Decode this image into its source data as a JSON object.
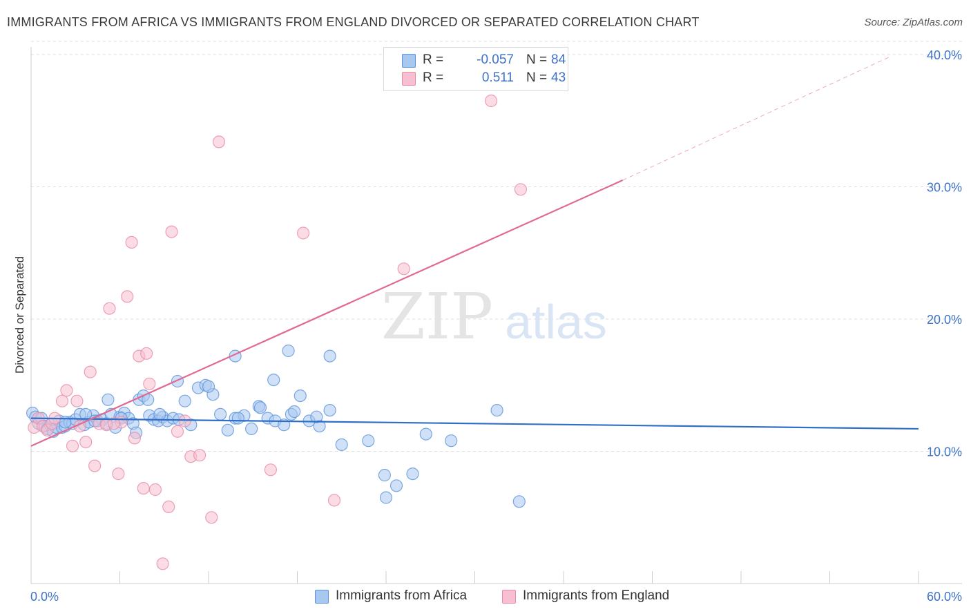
{
  "title": "IMMIGRANTS FROM AFRICA VS IMMIGRANTS FROM ENGLAND DIVORCED OR SEPARATED CORRELATION CHART",
  "source": "Source: ZipAtlas.com",
  "watermark": {
    "zip": "ZIP",
    "atlas": "atlas"
  },
  "colors": {
    "africa_fill": "#a9c8f0",
    "africa_stroke": "#5b93dc",
    "africa_line": "#2f6fc8",
    "england_fill": "#f7bfd0",
    "england_stroke": "#e88aa8",
    "england_line": "#e06a94",
    "tick_label": "#3d72c8",
    "grid": "#dddddd"
  },
  "legend": {
    "rows": [
      {
        "r_label": "R =",
        "r_value": "-0.057",
        "n_label": "N =",
        "n_value": "84"
      },
      {
        "r_label": "R =",
        "r_value": "0.511",
        "n_label": "N =",
        "n_value": "43"
      }
    ]
  },
  "chart_data": {
    "type": "scatter",
    "xlabel": "",
    "ylabel": "Divorced or Separated",
    "xlim": [
      0,
      60
    ],
    "ylim": [
      0,
      41
    ],
    "x_tick_labels": [
      "0.0%",
      "60.0%"
    ],
    "y_ticks": [
      10,
      20,
      30,
      40
    ],
    "y_tick_labels": [
      "10.0%",
      "20.0%",
      "30.0%",
      "40.0%"
    ],
    "grid": true,
    "legend_position": "bottom",
    "series": [
      {
        "name": "Immigrants from Africa",
        "trend": {
          "x": [
            0,
            60
          ],
          "y": [
            12.5,
            11.7
          ],
          "dashed_extension": false
        },
        "points": [
          [
            0.1,
            12.9
          ],
          [
            0.3,
            12.6
          ],
          [
            0.5,
            12.1
          ],
          [
            0.7,
            12.5
          ],
          [
            0.9,
            11.9
          ],
          [
            1.1,
            11.7
          ],
          [
            1.3,
            12.0
          ],
          [
            1.5,
            11.5
          ],
          [
            1.7,
            11.8
          ],
          [
            1.9,
            12.3
          ],
          [
            2.1,
            11.8
          ],
          [
            2.3,
            11.9
          ],
          [
            2.6,
            12.2
          ],
          [
            2.8,
            12.1
          ],
          [
            3.0,
            12.4
          ],
          [
            3.3,
            12.8
          ],
          [
            3.6,
            12.0
          ],
          [
            3.9,
            12.2
          ],
          [
            4.2,
            12.7
          ],
          [
            4.5,
            12.3
          ],
          [
            4.8,
            12.4
          ],
          [
            5.1,
            12.1
          ],
          [
            5.4,
            12.8
          ],
          [
            5.7,
            11.8
          ],
          [
            6.0,
            12.6
          ],
          [
            6.3,
            12.9
          ],
          [
            6.6,
            12.5
          ],
          [
            6.9,
            12.1
          ],
          [
            7.1,
            11.4
          ],
          [
            7.3,
            13.9
          ],
          [
            7.6,
            14.2
          ],
          [
            8.0,
            12.7
          ],
          [
            8.3,
            12.4
          ],
          [
            8.6,
            12.3
          ],
          [
            8.9,
            12.6
          ],
          [
            9.2,
            12.3
          ],
          [
            9.6,
            12.5
          ],
          [
            10.0,
            12.4
          ],
          [
            10.4,
            13.8
          ],
          [
            10.8,
            12.0
          ],
          [
            11.3,
            14.8
          ],
          [
            11.8,
            15.0
          ],
          [
            12.3,
            14.3
          ],
          [
            12.8,
            12.8
          ],
          [
            13.3,
            11.6
          ],
          [
            13.8,
            12.5
          ],
          [
            14.4,
            12.7
          ],
          [
            14.9,
            11.7
          ],
          [
            15.4,
            13.4
          ],
          [
            16.0,
            12.5
          ],
          [
            16.5,
            12.3
          ],
          [
            17.1,
            12.0
          ],
          [
            17.6,
            12.8
          ],
          [
            18.2,
            14.2
          ],
          [
            18.8,
            12.3
          ],
          [
            19.5,
            11.9
          ],
          [
            20.2,
            13.1
          ],
          [
            21.0,
            10.5
          ],
          [
            22.8,
            10.8
          ],
          [
            23.9,
            8.2
          ],
          [
            24.7,
            7.4
          ],
          [
            25.8,
            8.3
          ],
          [
            26.7,
            11.3
          ],
          [
            28.4,
            10.8
          ],
          [
            31.5,
            13.1
          ],
          [
            33.0,
            6.2
          ],
          [
            7.9,
            13.9
          ],
          [
            9.9,
            15.3
          ],
          [
            12.0,
            14.9
          ],
          [
            14.0,
            12.5
          ],
          [
            15.5,
            13.3
          ],
          [
            16.4,
            15.4
          ],
          [
            17.8,
            13.0
          ],
          [
            19.3,
            12.6
          ],
          [
            5.2,
            13.9
          ],
          [
            3.7,
            12.8
          ],
          [
            2.3,
            12.2
          ],
          [
            4.3,
            12.3
          ],
          [
            6.1,
            12.5
          ],
          [
            8.7,
            12.8
          ],
          [
            13.8,
            17.2
          ],
          [
            17.4,
            17.6
          ],
          [
            20.2,
            17.2
          ],
          [
            24.0,
            6.5
          ]
        ]
      },
      {
        "name": "Immigrants from England",
        "trend": {
          "x": [
            0,
            40
          ],
          "y": [
            10.4,
            30.5
          ],
          "dashed_extension": true,
          "dashed_to": {
            "x": 58,
            "y": 39.8
          }
        },
        "points": [
          [
            0.2,
            11.8
          ],
          [
            0.5,
            12.5
          ],
          [
            0.8,
            11.9
          ],
          [
            1.1,
            11.6
          ],
          [
            1.4,
            12.1
          ],
          [
            1.6,
            12.5
          ],
          [
            2.1,
            13.8
          ],
          [
            2.4,
            14.6
          ],
          [
            2.8,
            10.4
          ],
          [
            3.1,
            13.8
          ],
          [
            3.3,
            11.9
          ],
          [
            3.7,
            10.7
          ],
          [
            4.0,
            16.0
          ],
          [
            4.3,
            8.9
          ],
          [
            4.6,
            12.1
          ],
          [
            5.1,
            12.0
          ],
          [
            5.3,
            20.8
          ],
          [
            5.9,
            8.3
          ],
          [
            6.1,
            12.2
          ],
          [
            6.5,
            21.7
          ],
          [
            6.8,
            25.8
          ],
          [
            7.0,
            11.0
          ],
          [
            7.3,
            17.2
          ],
          [
            7.6,
            7.2
          ],
          [
            7.8,
            17.4
          ],
          [
            8.0,
            15.1
          ],
          [
            8.4,
            7.1
          ],
          [
            8.9,
            1.5
          ],
          [
            9.3,
            5.8
          ],
          [
            9.5,
            26.6
          ],
          [
            9.9,
            11.5
          ],
          [
            10.4,
            12.3
          ],
          [
            10.8,
            9.6
          ],
          [
            11.4,
            9.7
          ],
          [
            12.2,
            5.0
          ],
          [
            12.7,
            33.4
          ],
          [
            16.2,
            8.6
          ],
          [
            18.4,
            26.5
          ],
          [
            20.5,
            6.3
          ],
          [
            25.2,
            23.8
          ],
          [
            31.1,
            36.5
          ],
          [
            33.1,
            29.8
          ],
          [
            5.6,
            12.1
          ]
        ]
      }
    ]
  }
}
